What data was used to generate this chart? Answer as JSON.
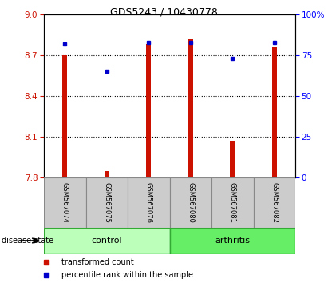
{
  "title": "GDS5243 / 10430778",
  "samples": [
    "GSM567074",
    "GSM567075",
    "GSM567076",
    "GSM567080",
    "GSM567081",
    "GSM567082"
  ],
  "bar_values": [
    8.7,
    7.85,
    8.78,
    8.82,
    8.07,
    8.76
  ],
  "bar_base": 7.8,
  "percentile_values": [
    82,
    65,
    83,
    83,
    73,
    83
  ],
  "ylim_left": [
    7.8,
    9.0
  ],
  "ylim_right": [
    0,
    100
  ],
  "yticks_left": [
    7.8,
    8.1,
    8.4,
    8.7,
    9.0
  ],
  "yticks_right": [
    0,
    25,
    50,
    75,
    100
  ],
  "ytick_labels_right": [
    "0",
    "25",
    "50",
    "75",
    "100%"
  ],
  "bar_color": "#cc1100",
  "dot_color": "#0000cc",
  "control_bg": "#bbffbb",
  "arthritis_bg": "#66ee66",
  "sample_bg": "#cccccc",
  "hline_y": [
    8.7,
    8.4,
    8.1
  ],
  "legend_labels": [
    "transformed count",
    "percentile rank within the sample"
  ],
  "group_label": "disease state",
  "title_fontsize": 9,
  "tick_fontsize": 7.5,
  "legend_fontsize": 7,
  "sample_fontsize": 6,
  "group_fontsize": 8
}
